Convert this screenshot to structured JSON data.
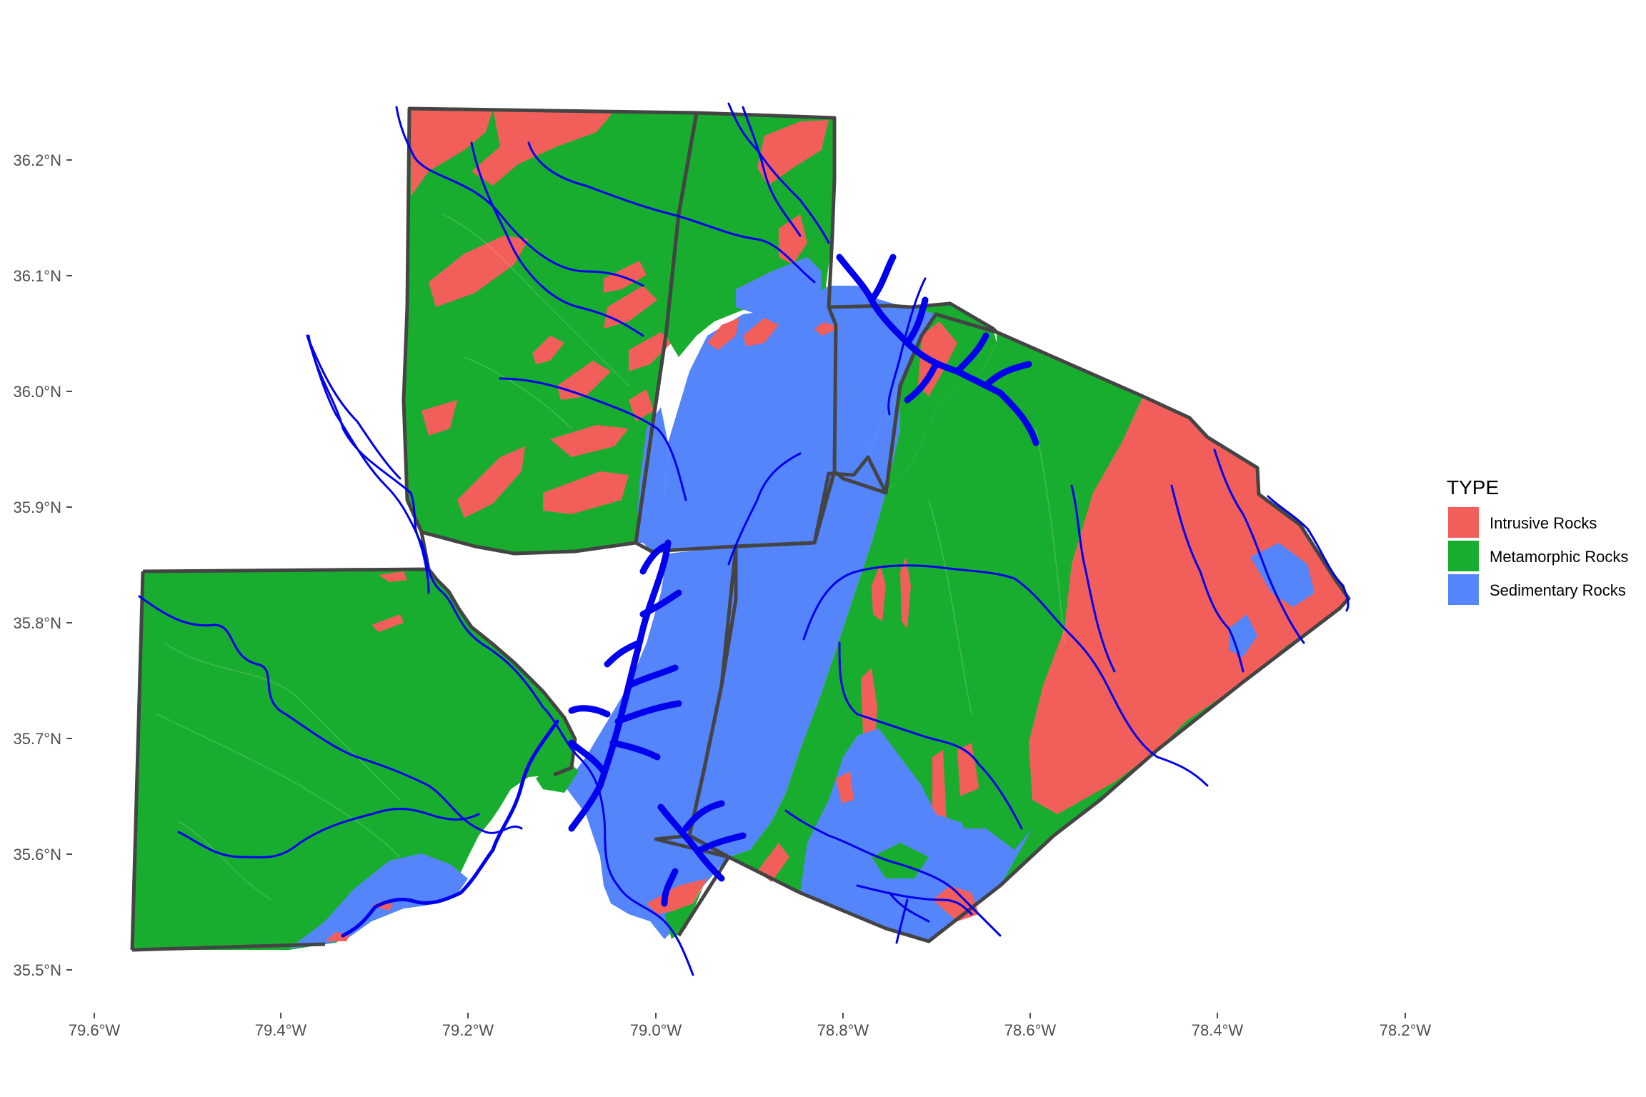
{
  "map": {
    "x_ticks": [
      "79.6°W",
      "79.4°W",
      "79.2°W",
      "79.0°W",
      "78.8°W",
      "78.6°W",
      "78.4°W",
      "78.2°W"
    ],
    "y_ticks": [
      "36.2°N",
      "36.1°N",
      "36.0°N",
      "35.9°N",
      "35.8°N",
      "35.7°N",
      "35.6°N",
      "35.5°N"
    ]
  },
  "legend": {
    "title": "TYPE",
    "items": [
      {
        "label": "Intrusive Rocks",
        "color": "#F25F5A"
      },
      {
        "label": "Metamorphic Rocks",
        "color": "#19AD2F"
      },
      {
        "label": "Sedimentary Rocks",
        "color": "#5585FA"
      }
    ]
  },
  "colors": {
    "intrusive": "#F25F5A",
    "metamorphic": "#19AD2F",
    "sedimentary": "#5585FA",
    "water": "#0000EE",
    "boundary": "#444444"
  }
}
